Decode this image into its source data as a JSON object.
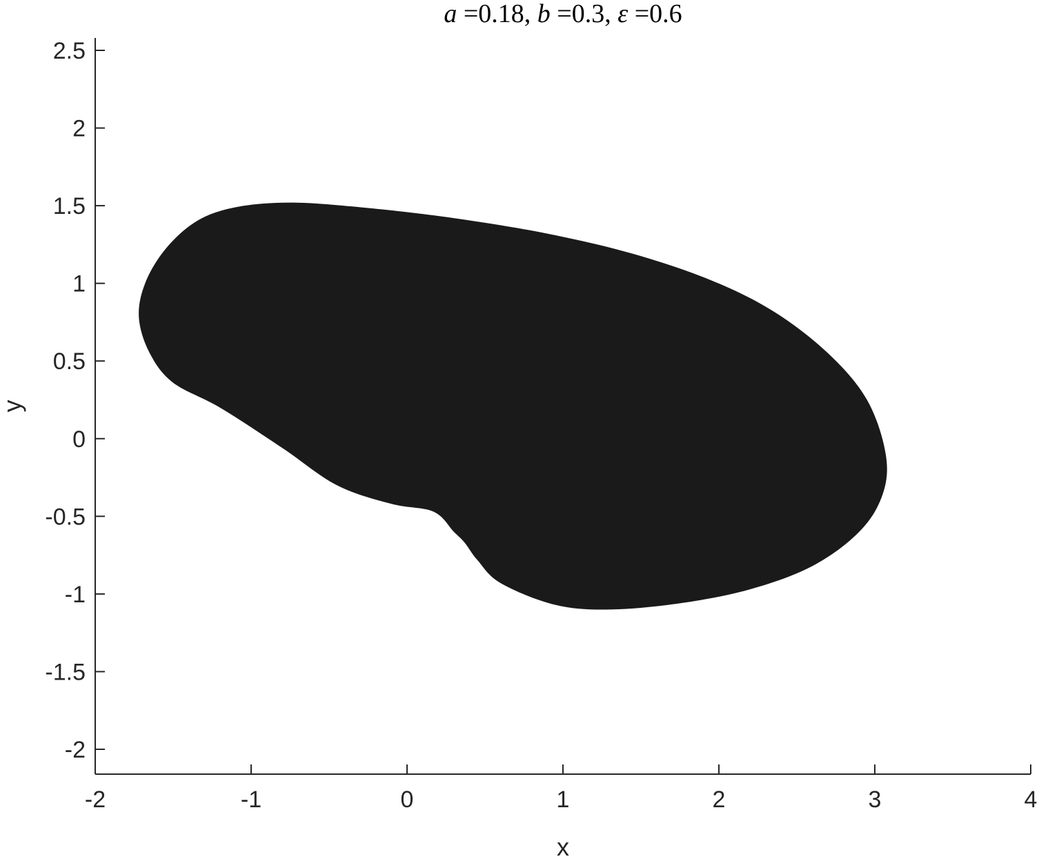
{
  "chart_data": {
    "type": "area",
    "title": {
      "parts": [
        {
          "text": "a",
          "italic": true
        },
        {
          "text": " =0.18, ",
          "italic": false
        },
        {
          "text": "b",
          "italic": true
        },
        {
          "text": " =0.3, ",
          "italic": false
        },
        {
          "text": "ε",
          "italic": true
        },
        {
          "text": " =0.6",
          "italic": false
        }
      ]
    },
    "xlabel": "x",
    "ylabel": "y",
    "xlim": [
      -2,
      4
    ],
    "ylim": [
      -2.16,
      2.58
    ],
    "xticks": [
      -2,
      -1,
      0,
      1,
      2,
      3,
      4
    ],
    "yticks": [
      -2,
      -1.5,
      -1,
      -0.5,
      0,
      0.5,
      1,
      1.5,
      2,
      2.5
    ],
    "grid": false,
    "colors": {
      "fill": "#1a1a1a",
      "axis": "#262626"
    },
    "series": [
      {
        "x": [
          -0.75,
          -0.3,
          0.3,
          0.9,
          1.45,
          1.95,
          2.35,
          2.7,
          2.95,
          3.07,
          3.05,
          2.9,
          2.6,
          2.2,
          1.75,
          1.3,
          0.95,
          0.6,
          0.45,
          0.37,
          0.3,
          0.17,
          -0.1,
          -0.45,
          -0.8,
          -1.2,
          -1.5,
          -1.65,
          -1.72,
          -1.68,
          -1.55,
          -1.35,
          -1.1
        ],
        "y": [
          1.52,
          1.49,
          1.42,
          1.32,
          1.19,
          1.02,
          0.82,
          0.55,
          0.25,
          -0.1,
          -0.36,
          -0.6,
          -0.82,
          -0.97,
          -1.06,
          -1.1,
          -1.07,
          -0.93,
          -0.78,
          -0.67,
          -0.6,
          -0.47,
          -0.42,
          -0.3,
          -0.06,
          0.2,
          0.36,
          0.55,
          0.78,
          1.0,
          1.22,
          1.4,
          1.49
        ]
      }
    ]
  }
}
